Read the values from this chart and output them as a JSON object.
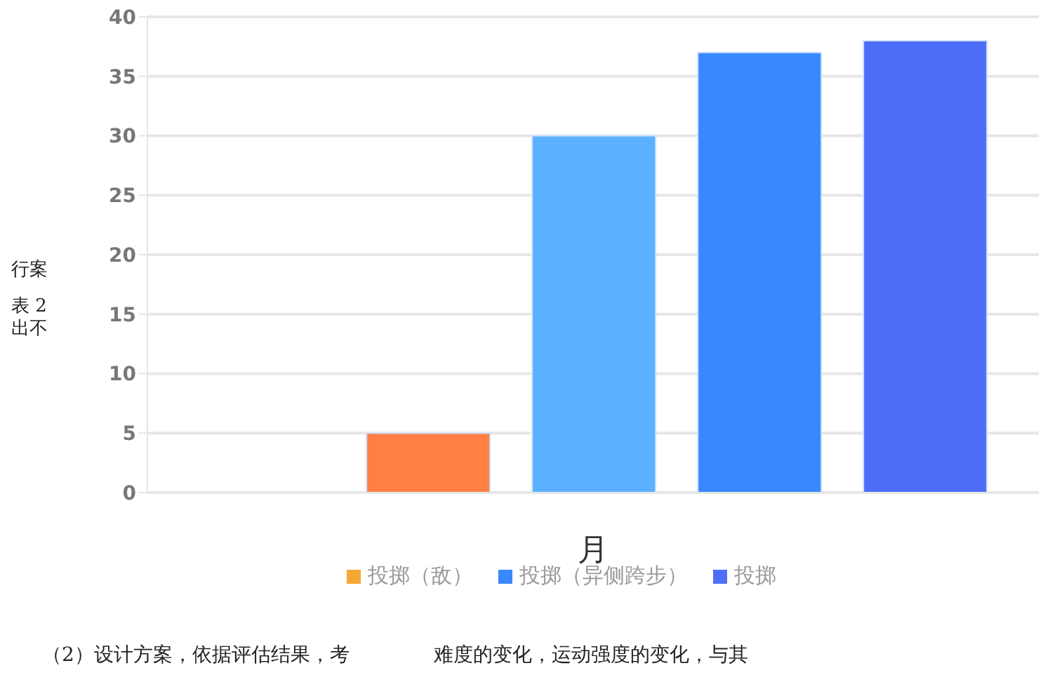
{
  "chart_data": {
    "type": "bar",
    "xlabel": "月",
    "categories": [
      null
    ],
    "series": [
      {
        "name": "投掷（敌）",
        "color": "#f5a833",
        "values": [
          0
        ]
      },
      {
        "color": "#ff7f45",
        "values": [
          5
        ]
      },
      {
        "color": "#5bb0ff",
        "values": [
          30
        ]
      },
      {
        "name": "投掷（异侧跨步）",
        "color": "#3a88fd",
        "values": [
          37
        ]
      },
      {
        "name": "投掷",
        "color": "#4f6ef7",
        "values": [
          38
        ]
      }
    ],
    "ylim": [
      0,
      40
    ],
    "yticks": [
      0,
      5,
      10,
      15,
      20,
      25,
      30,
      35,
      40
    ],
    "grid": "y",
    "legend": "bottom",
    "annotations": [
      "行案",
      "表 2",
      "出不",
      "（2）设计方案，依据评估结果，考",
      "难度的变化，运动强度的变化，与其"
    ]
  }
}
